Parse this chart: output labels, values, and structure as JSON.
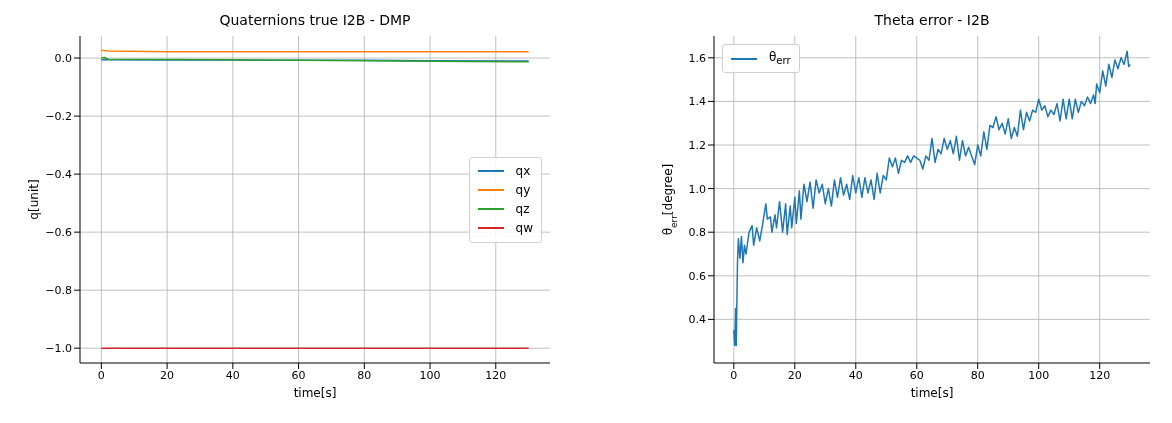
{
  "chart_data": [
    {
      "type": "line",
      "title": "Quaternions true I2B - DMP",
      "xlabel": "time[s]",
      "ylabel": "q[unit]",
      "xlim": [
        -6.5,
        136.5
      ],
      "xticks": [
        0,
        20,
        40,
        60,
        80,
        100,
        120
      ],
      "ylim": [
        -1.051,
        0.076
      ],
      "yticks": [
        {
          "value": 0,
          "label": "0.0"
        },
        {
          "value": -0.2,
          "label": "−0.2"
        },
        {
          "value": -0.4,
          "label": "−0.4"
        },
        {
          "value": -0.6,
          "label": "−0.6"
        },
        {
          "value": -0.8,
          "label": "−0.8"
        },
        {
          "value": -1,
          "label": "−1.0"
        }
      ],
      "grid": true,
      "legend": "right",
      "line_style": "solid",
      "marker": "none",
      "series": [
        {
          "name": "qx",
          "color": "#1f77b4",
          "x": [
            0,
            20,
            40,
            60,
            80,
            100,
            130
          ],
          "values": [
            -0.006,
            -0.007,
            -0.007,
            -0.008,
            -0.008,
            -0.009,
            -0.01
          ]
        },
        {
          "name": "qy",
          "color": "#ff7f0e",
          "x": [
            0,
            2,
            20,
            40,
            60,
            80,
            100,
            130
          ],
          "values": [
            0.027,
            0.024,
            0.022,
            0.022,
            0.022,
            0.022,
            0.022,
            0.022
          ]
        },
        {
          "name": "qz",
          "color": "#2ca02c",
          "x": [
            0,
            1,
            2,
            20,
            40,
            60,
            80,
            100,
            130
          ],
          "values": [
            0.001,
            0.002,
            -0.004,
            -0.005,
            -0.006,
            -0.008,
            -0.009,
            -0.011,
            -0.013
          ]
        },
        {
          "name": "qw",
          "color": "#d62728",
          "x": [
            0,
            130
          ],
          "values": [
            -1,
            -1
          ]
        }
      ]
    },
    {
      "type": "line",
      "title": "Theta error -  I2B",
      "xlabel": "time[s]",
      "ylabel": "θ$_{err}$[degree]",
      "xlim": [
        -6.5,
        136.5
      ],
      "xticks": [
        0,
        20,
        40,
        60,
        80,
        100,
        120
      ],
      "ylim": [
        0.2,
        1.7
      ],
      "yticks": [
        0.4,
        0.6,
        0.8,
        {
          "value": 1,
          "label": "1.0"
        },
        1.2,
        1.4,
        1.6
      ],
      "grid": true,
      "legend": "top left",
      "line_style": "solid",
      "marker": "none",
      "series": [
        {
          "name": "θ$_{err}$",
          "color": "#1f77b4",
          "x": [
            0,
            0.3,
            0.6,
            0.8,
            1.2,
            1.5,
            2,
            2.5,
            3,
            3.5,
            4,
            5,
            6,
            6.5,
            7.5,
            8.5,
            9.5,
            10.5,
            11,
            12,
            12.5,
            13.5,
            14,
            15,
            16,
            17,
            17.5,
            18.5,
            19,
            20,
            20.5,
            21.5,
            22,
            23,
            24,
            25,
            26,
            27,
            28,
            29,
            30,
            31,
            32,
            33,
            34,
            35,
            36,
            37,
            38,
            39,
            40,
            41,
            42,
            43,
            44,
            45,
            46,
            47,
            48,
            49,
            50,
            51,
            52,
            53,
            54,
            55,
            56,
            57,
            58,
            59,
            60,
            61,
            62,
            63,
            64,
            65,
            66,
            67,
            68,
            69,
            70,
            71,
            72,
            73,
            74,
            75,
            76,
            77,
            78,
            79,
            80,
            81,
            82,
            83,
            84,
            85,
            86,
            87,
            88,
            89,
            90,
            91,
            92,
            93,
            94,
            95,
            96,
            97,
            98,
            99,
            100,
            101,
            102,
            103,
            104,
            105,
            106,
            107,
            108,
            109,
            110,
            111,
            112,
            113,
            114,
            115,
            116,
            117,
            118,
            118.5,
            119,
            120,
            121,
            122,
            123,
            124,
            125,
            126,
            127,
            128,
            129,
            129.5,
            130
          ],
          "values": [
            0.35,
            0.28,
            0.45,
            0.28,
            0.66,
            0.77,
            0.68,
            0.78,
            0.66,
            0.74,
            0.7,
            0.8,
            0.83,
            0.74,
            0.82,
            0.76,
            0.84,
            0.93,
            0.86,
            0.87,
            0.8,
            0.88,
            0.82,
            0.94,
            0.8,
            0.93,
            0.79,
            0.92,
            0.82,
            0.96,
            0.84,
            0.99,
            0.86,
            1.02,
            0.94,
            1.03,
            0.91,
            1.04,
            0.98,
            1.02,
            0.93,
            1.0,
            0.92,
            1.04,
            0.96,
            1.05,
            0.97,
            1.02,
            0.95,
            1.06,
            0.98,
            1.05,
            0.96,
            1.05,
            0.98,
            1.04,
            0.95,
            1.07,
            0.98,
            1.06,
            1.04,
            1.14,
            1.1,
            1.14,
            1.07,
            1.13,
            1.12,
            1.15,
            1.12,
            1.15,
            1.14,
            1.13,
            1.09,
            1.15,
            1.13,
            1.23,
            1.12,
            1.18,
            1.16,
            1.23,
            1.18,
            1.22,
            1.16,
            1.24,
            1.13,
            1.22,
            1.15,
            1.19,
            1.15,
            1.11,
            1.2,
            1.15,
            1.26,
            1.18,
            1.29,
            1.28,
            1.33,
            1.27,
            1.3,
            1.25,
            1.32,
            1.23,
            1.28,
            1.24,
            1.36,
            1.27,
            1.35,
            1.31,
            1.36,
            1.35,
            1.41,
            1.36,
            1.38,
            1.33,
            1.36,
            1.34,
            1.39,
            1.31,
            1.41,
            1.32,
            1.41,
            1.32,
            1.41,
            1.35,
            1.4,
            1.38,
            1.42,
            1.39,
            1.43,
            1.39,
            1.48,
            1.44,
            1.54,
            1.47,
            1.57,
            1.51,
            1.59,
            1.55,
            1.6,
            1.57,
            1.63,
            1.56,
            1.57
          ]
        }
      ]
    }
  ]
}
